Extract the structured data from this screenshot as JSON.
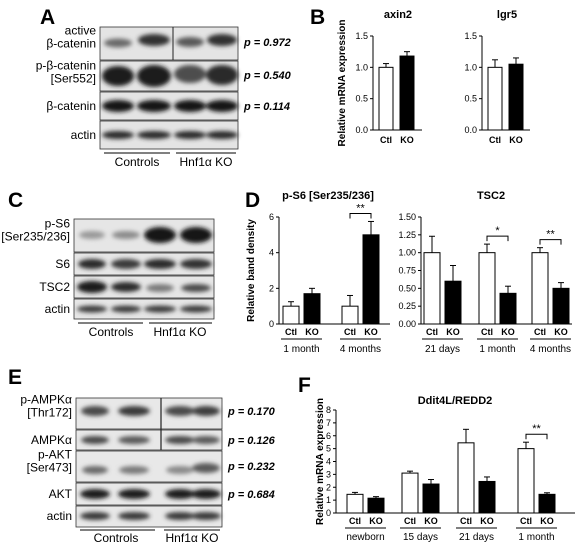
{
  "figure": {
    "panel_letters": [
      "A",
      "B",
      "C",
      "D",
      "E",
      "F"
    ]
  },
  "blots": {
    "A": {
      "rows": [
        "active\nβ-catenin",
        "p-β-catenin\n[Ser552]",
        "β-catenin",
        "actin"
      ],
      "pvalues": [
        "p = 0.972",
        "p = 0.540",
        "p = 0.114"
      ],
      "groups": [
        "Controls",
        "Hnf1α KO"
      ]
    },
    "C": {
      "rows": [
        "p-S6\n[Ser235/236]",
        "S6",
        "TSC2",
        "actin"
      ],
      "groups": [
        "Controls",
        "Hnf1α KO"
      ]
    },
    "E": {
      "rows": [
        "p-AMPKα\n[Thr172]",
        "AMPKα",
        "p-AKT\n[Ser473]",
        "AKT",
        "actin"
      ],
      "pvalues": [
        "p = 0.170",
        "p = 0.126",
        "p = 0.232",
        "p = 0.684"
      ],
      "groups": [
        "Controls",
        "Hnf1α KO"
      ]
    }
  },
  "chart_data": [
    {
      "panel": "B",
      "type": "bar",
      "title": "axin2",
      "ylabel": "Relative mRNA expression",
      "categories": [
        "Ctl",
        "KO"
      ],
      "values": [
        1.0,
        1.18
      ],
      "errors": [
        0.06,
        0.07
      ],
      "colors": [
        "#ffffff",
        "#000000"
      ],
      "ylim": [
        0,
        1.5
      ],
      "yticks": [
        "0.0",
        "0.5",
        "1.0",
        "1.5"
      ]
    },
    {
      "panel": "B",
      "type": "bar",
      "title": "lgr5",
      "ylabel": "",
      "categories": [
        "Ctl",
        "KO"
      ],
      "values": [
        1.0,
        1.05
      ],
      "errors": [
        0.12,
        0.1
      ],
      "colors": [
        "#ffffff",
        "#000000"
      ],
      "ylim": [
        0,
        1.5
      ],
      "yticks": [
        "0.0",
        "0.5",
        "1.0",
        "1.5"
      ]
    },
    {
      "panel": "D",
      "type": "bar",
      "title": "p-S6 [Ser235/236]",
      "ylabel": "Relative band density",
      "groups": [
        "1 month",
        "4 months"
      ],
      "categories": [
        "Ctl",
        "KO",
        "Ctl",
        "KO"
      ],
      "values": [
        1.0,
        1.7,
        1.0,
        5.0
      ],
      "errors": [
        0.25,
        0.3,
        0.6,
        0.75
      ],
      "colors": [
        "#ffffff",
        "#000000",
        "#ffffff",
        "#000000"
      ],
      "ylim": [
        0,
        6
      ],
      "yticks": [
        "0",
        "2",
        "4",
        "6"
      ],
      "significance": [
        {
          "between": [
            2,
            3
          ],
          "label": "**"
        }
      ]
    },
    {
      "panel": "D",
      "type": "bar",
      "title": "TSC2",
      "ylabel": "",
      "groups": [
        "21 days",
        "1 month",
        "4 months"
      ],
      "categories": [
        "Ctl",
        "KO",
        "Ctl",
        "KO",
        "Ctl",
        "KO"
      ],
      "values": [
        1.0,
        0.6,
        1.0,
        0.43,
        1.0,
        0.5
      ],
      "errors": [
        0.23,
        0.22,
        0.12,
        0.1,
        0.07,
        0.08
      ],
      "colors": [
        "#ffffff",
        "#000000",
        "#ffffff",
        "#000000",
        "#ffffff",
        "#000000"
      ],
      "ylim": [
        0,
        1.5
      ],
      "yticks": [
        "0.00",
        "0.25",
        "0.50",
        "0.75",
        "1.00",
        "1.25",
        "1.50"
      ],
      "significance": [
        {
          "between": [
            2,
            3
          ],
          "label": "*"
        },
        {
          "between": [
            4,
            5
          ],
          "label": "**"
        }
      ]
    },
    {
      "panel": "F",
      "type": "bar",
      "title": "Ddit4L/REDD2",
      "ylabel": "Relative mRNA expression",
      "groups": [
        "newborn",
        "15 days",
        "21 days",
        "1 month"
      ],
      "categories": [
        "Ctl",
        "KO",
        "Ctl",
        "KO",
        "Ctl",
        "KO",
        "Ctl",
        "KO"
      ],
      "values": [
        1.45,
        1.15,
        3.1,
        2.25,
        5.45,
        2.45,
        5.0,
        1.45
      ],
      "errors": [
        0.15,
        0.12,
        0.15,
        0.35,
        1.05,
        0.35,
        0.5,
        0.12
      ],
      "colors": [
        "#ffffff",
        "#000000",
        "#ffffff",
        "#000000",
        "#ffffff",
        "#000000",
        "#ffffff",
        "#000000"
      ],
      "ylim": [
        0,
        8
      ],
      "yticks": [
        "0",
        "1",
        "2",
        "3",
        "4",
        "5",
        "6",
        "7",
        "8"
      ],
      "significance": [
        {
          "between": [
            6,
            7
          ],
          "label": "**"
        }
      ]
    }
  ]
}
